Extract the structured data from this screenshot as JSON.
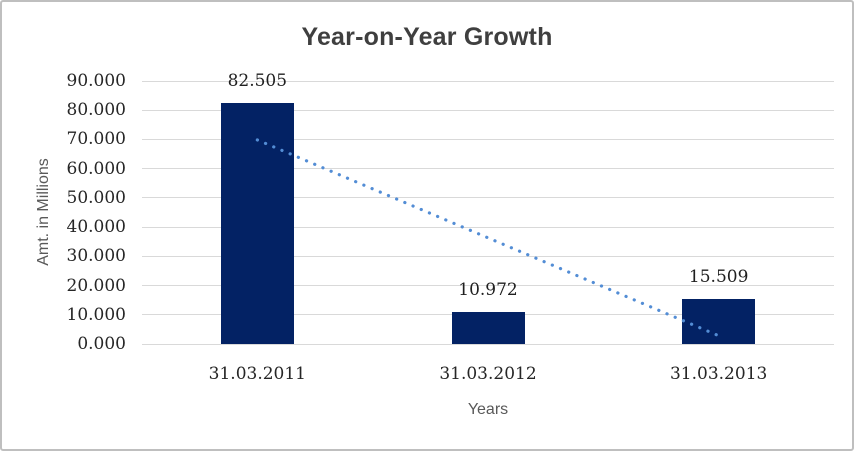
{
  "chart_data": {
    "type": "bar",
    "title": "Year-on-Year Growth",
    "xlabel": "Years",
    "ylabel": "Amt. in Millions",
    "categories": [
      "31.03.2011",
      "31.03.2012",
      "31.03.2013"
    ],
    "values": [
      82.505,
      10.972,
      15.509
    ],
    "data_labels": [
      "82.505",
      "10.972",
      "15.509"
    ],
    "ylim": [
      0,
      90
    ],
    "ytick_step": 10,
    "ytick_labels": [
      "0.000",
      "10.000",
      "20.000",
      "30.000",
      "40.000",
      "50.000",
      "60.000",
      "70.000",
      "80.000",
      "90.000"
    ],
    "grid": true,
    "legend": "none",
    "colors": {
      "bar": "#032264",
      "trendline": "#538dd5",
      "gridline": "#d9d9d9",
      "title_text": "#3f3f3f",
      "axis_title_text": "#595959",
      "tick_text": "#262626",
      "frame_border": "#bfbfbf"
    },
    "trendline": {
      "style": "dotted",
      "shape": "linear",
      "start_value": 69.83,
      "end_value": 2.83
    }
  }
}
